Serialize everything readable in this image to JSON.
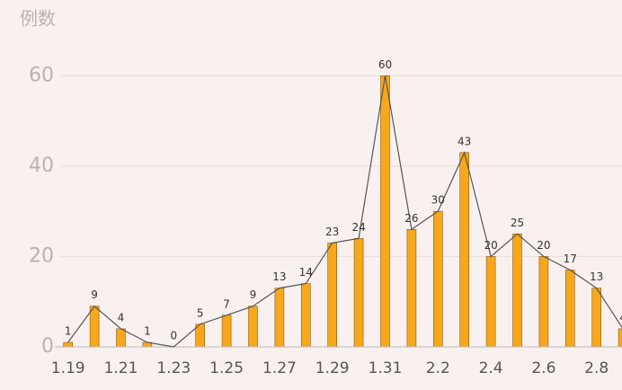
{
  "chart_data": {
    "type": "bar-line",
    "title": "例数",
    "categories": [
      "1.19",
      null,
      "1.21",
      null,
      "1.23",
      null,
      "1.25",
      null,
      "1.27",
      null,
      "1.29",
      null,
      "1.31",
      null,
      "2.2",
      null,
      "2.4",
      null,
      "2.6",
      null,
      "2.8",
      null
    ],
    "values": [
      1,
      9,
      4,
      1,
      0,
      5,
      7,
      9,
      13,
      14,
      23,
      24,
      60,
      26,
      30,
      43,
      20,
      25,
      20,
      17,
      13,
      4
    ],
    "color": "#f7a71b",
    "line_color": "#555555",
    "ylim": [
      0,
      70
    ],
    "yticks": [
      0,
      20,
      40,
      60
    ],
    "grid": true
  }
}
